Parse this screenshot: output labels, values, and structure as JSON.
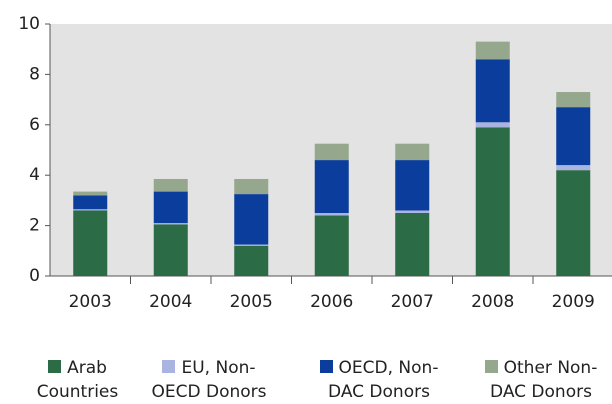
{
  "chart_data": {
    "type": "stacked_bar",
    "categories": [
      "2003",
      "2004",
      "2005",
      "2006",
      "2007",
      "2008",
      "2009"
    ],
    "series": [
      {
        "name": "Arab Countries",
        "color": "#2b6b45",
        "values": [
          2.6,
          2.05,
          1.2,
          2.4,
          2.5,
          5.9,
          4.2
        ]
      },
      {
        "name": "EU, Non-OECD Donors",
        "color": "#a9b4e0",
        "values": [
          0.05,
          0.05,
          0.05,
          0.1,
          0.1,
          0.2,
          0.2
        ]
      },
      {
        "name": "OECD, Non-DAC Donors",
        "color": "#0b3d9c",
        "values": [
          0.55,
          1.25,
          2.0,
          2.1,
          2.0,
          2.5,
          2.3
        ]
      },
      {
        "name": "Other Non-DAC Donors",
        "color": "#95a78d",
        "values": [
          0.15,
          0.5,
          0.6,
          0.65,
          0.65,
          0.7,
          0.6
        ]
      }
    ],
    "ylim": [
      0,
      10
    ],
    "yticks": [
      0,
      2,
      4,
      6,
      8,
      10
    ],
    "grid": false
  }
}
